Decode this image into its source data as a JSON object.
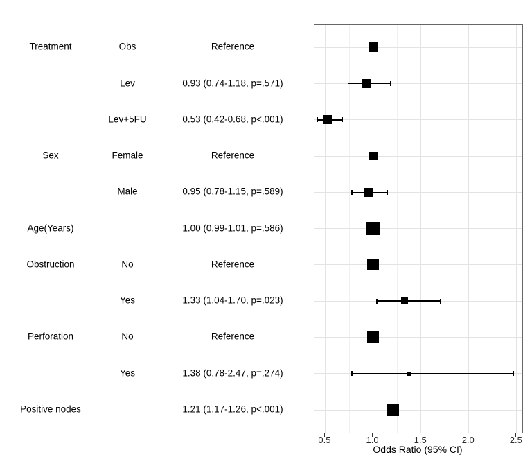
{
  "chart_data": {
    "type": "scatter",
    "subtype": "forest-plot",
    "title": "",
    "xlabel": "Odds Ratio (95% CI)",
    "x_ticks": [
      0.5,
      1.0,
      1.5,
      2.0,
      2.5
    ],
    "x_tick_labels": [
      "0.5",
      "1.0",
      "1.5",
      "2.0",
      "2.5"
    ],
    "x_minor_ticks": [
      0.75,
      1.25,
      1.75,
      2.25
    ],
    "xlim": [
      0.388,
      2.559
    ],
    "reference_line": 1.0,
    "grid": true,
    "legend": null,
    "rows": [
      {
        "group": "Treatment",
        "level": "Obs",
        "label": "Reference",
        "or": 1.0,
        "lo": null,
        "hi": null,
        "reference": true,
        "size": 14
      },
      {
        "group": "",
        "level": "Lev",
        "label": "0.93 (0.74-1.18, p=.571)",
        "or": 0.93,
        "lo": 0.74,
        "hi": 1.18,
        "reference": false,
        "size": 13
      },
      {
        "group": "",
        "level": "Lev+5FU",
        "label": "0.53 (0.42-0.68, p<.001)",
        "or": 0.53,
        "lo": 0.42,
        "hi": 0.68,
        "reference": false,
        "size": 13
      },
      {
        "group": "Sex",
        "level": "Female",
        "label": "Reference",
        "or": 1.0,
        "lo": null,
        "hi": null,
        "reference": true,
        "size": 12.5
      },
      {
        "group": "",
        "level": "Male",
        "label": "0.95 (0.78-1.15, p=.589)",
        "or": 0.95,
        "lo": 0.78,
        "hi": 1.15,
        "reference": false,
        "size": 13
      },
      {
        "group": "Age(Years)",
        "level": "",
        "label": "1.00 (0.99-1.01, p=.586)",
        "or": 1.0,
        "lo": 0.99,
        "hi": 1.01,
        "reference": false,
        "size": 19
      },
      {
        "group": "Obstruction",
        "level": "No",
        "label": "Reference",
        "or": 1.0,
        "lo": null,
        "hi": null,
        "reference": true,
        "size": 16.5
      },
      {
        "group": "",
        "level": "Yes",
        "label": "1.33 (1.04-1.70, p=.023)",
        "or": 1.33,
        "lo": 1.04,
        "hi": 1.7,
        "reference": false,
        "size": 10
      },
      {
        "group": "Perforation",
        "level": "No",
        "label": "Reference",
        "or": 1.0,
        "lo": null,
        "hi": null,
        "reference": true,
        "size": 16.5
      },
      {
        "group": "",
        "level": "Yes",
        "label": "1.38 (0.78-2.47, p=.274)",
        "or": 1.38,
        "lo": 0.78,
        "hi": 2.47,
        "reference": false,
        "size": 6
      },
      {
        "group": "Positive nodes",
        "level": "",
        "label": "1.21 (1.17-1.26, p<.001)",
        "or": 1.21,
        "lo": 1.17,
        "hi": 1.26,
        "reference": false,
        "size": 17.5
      }
    ],
    "colors": {
      "marker": "#000000",
      "ci_line": "#000000",
      "refline": "#1a1a1a",
      "grid_major": "#e3e3e3",
      "grid_minor": "#f0f0f0",
      "panel_border": "#676767",
      "tick_label": "#2b2b2b",
      "text": "#000000"
    }
  }
}
